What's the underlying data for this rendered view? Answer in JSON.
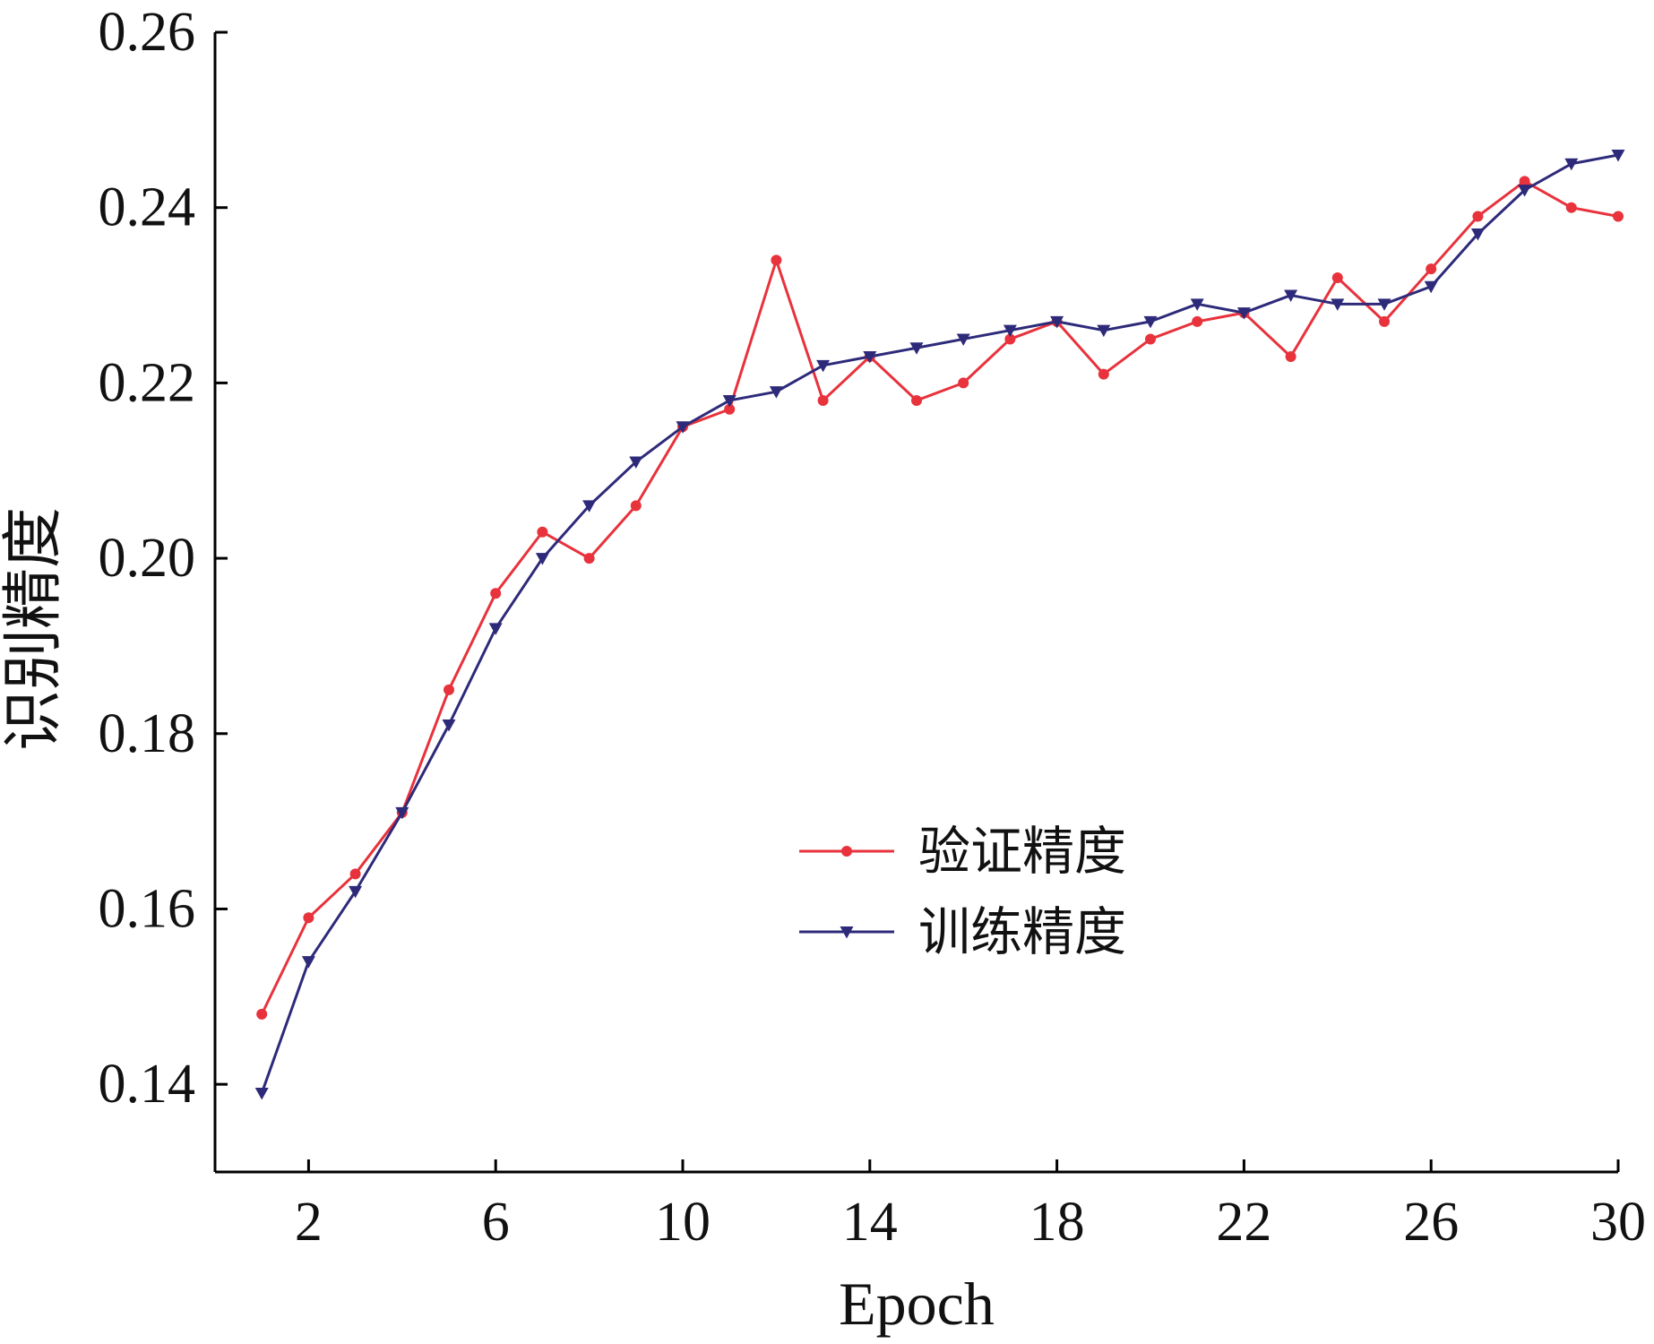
{
  "chart_data": {
    "type": "line",
    "xlabel": "Epoch",
    "ylabel": "识别精度",
    "xlim": [
      0,
      30
    ],
    "ylim": [
      0.13,
      0.26
    ],
    "x_ticks": [
      2,
      6,
      10,
      14,
      18,
      22,
      26,
      30
    ],
    "y_ticks": [
      0.14,
      0.16,
      0.18,
      0.2,
      0.22,
      0.24,
      0.26
    ],
    "y_tick_labels": [
      "0.14",
      "0.16",
      "0.18",
      "0.20",
      "0.22",
      "0.24",
      "0.26"
    ],
    "grid": false,
    "legend_position": "center-right",
    "x": [
      1,
      2,
      3,
      4,
      5,
      6,
      7,
      8,
      9,
      10,
      11,
      12,
      13,
      14,
      15,
      16,
      17,
      18,
      19,
      20,
      21,
      22,
      23,
      24,
      25,
      26,
      27,
      28,
      29,
      30
    ],
    "series": [
      {
        "name": "验证精度",
        "color": "#e8323c",
        "marker": "circle",
        "values": [
          0.148,
          0.159,
          0.164,
          0.171,
          0.185,
          0.196,
          0.203,
          0.2,
          0.206,
          0.215,
          0.217,
          0.234,
          0.218,
          0.223,
          0.218,
          0.22,
          0.225,
          0.227,
          0.221,
          0.225,
          0.227,
          0.228,
          0.223,
          0.232,
          0.227,
          0.233,
          0.239,
          0.243,
          0.24,
          0.239
        ]
      },
      {
        "name": "训练精度",
        "color": "#2e2a7a",
        "marker": "triangle-down",
        "values": [
          0.139,
          0.154,
          0.162,
          0.171,
          0.181,
          0.192,
          0.2,
          0.206,
          0.211,
          0.215,
          0.218,
          0.219,
          0.222,
          0.223,
          0.224,
          0.225,
          0.226,
          0.227,
          0.226,
          0.227,
          0.229,
          0.228,
          0.23,
          0.229,
          0.229,
          0.231,
          0.237,
          0.242,
          0.245,
          0.246
        ]
      }
    ]
  }
}
